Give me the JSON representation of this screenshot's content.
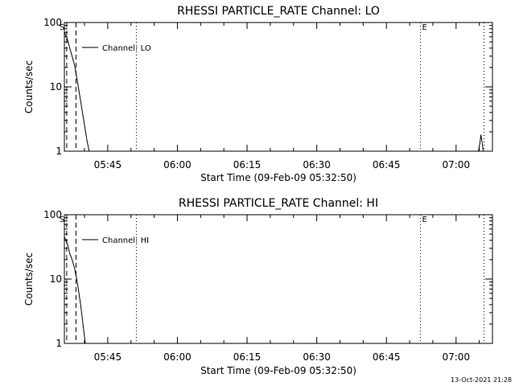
{
  "chart_data": [
    {
      "type": "line",
      "title": "RHESSI PARTICLE_RATE Channel: LO",
      "xlabel": "Start Time (09-Feb-09 05:32:50)",
      "ylabel": "Counts/sec",
      "yscale": "log",
      "ylim": [
        1,
        100
      ],
      "xlim": [
        "05:35:40",
        "07:07:50"
      ],
      "x_ticks": [
        "05:45",
        "06:00",
        "06:15",
        "06:30",
        "06:45",
        "07:00"
      ],
      "y_ticks": [
        "1",
        "10",
        "100"
      ],
      "legend": "Channel: LO",
      "legend_position": "top-left",
      "grid": false,
      "markers": [
        {
          "label": "S",
          "time": "05:36:10",
          "style": "dashed"
        },
        {
          "label": "",
          "time": "05:38:10",
          "style": "dashed"
        },
        {
          "label": "",
          "time": "05:51:10",
          "style": "dotted"
        },
        {
          "label": "E",
          "time": "06:52:20",
          "style": "dotted"
        },
        {
          "label": "",
          "time": "07:06:00",
          "style": "dotted"
        }
      ],
      "series": [
        {
          "name": "Channel: LO",
          "points": [
            [
              "05:35:40",
              70
            ],
            [
              "05:36:20",
              55
            ],
            [
              "05:36:50",
              40
            ],
            [
              "05:37:20",
              30
            ],
            [
              "05:37:50",
              22
            ],
            [
              "05:38:20",
              14
            ],
            [
              "05:38:40",
              10
            ],
            [
              "05:39:10",
              6
            ],
            [
              "05:39:50",
              3
            ],
            [
              "05:40:30",
              1.5
            ],
            [
              "05:41:00",
              1
            ]
          ]
        },
        {
          "name": "",
          "points": [
            [
              "07:04:50",
              1
            ],
            [
              "07:05:10",
              1.4
            ],
            [
              "07:05:20",
              1.8
            ],
            [
              "07:05:35",
              1.4
            ],
            [
              "07:05:50",
              1
            ]
          ]
        }
      ]
    },
    {
      "type": "line",
      "title": "RHESSI PARTICLE_RATE Channel: HI",
      "xlabel": "Start Time (09-Feb-09 05:32:50)",
      "ylabel": "Counts/sec",
      "yscale": "log",
      "ylim": [
        1,
        100
      ],
      "xlim": [
        "05:35:40",
        "07:07:50"
      ],
      "x_ticks": [
        "05:45",
        "06:00",
        "06:15",
        "06:30",
        "06:45",
        "07:00"
      ],
      "y_ticks": [
        "1",
        "10",
        "100"
      ],
      "legend": "Channel: HI",
      "legend_position": "top-left",
      "grid": false,
      "markers": [
        {
          "label": "S",
          "time": "05:36:10",
          "style": "dashed"
        },
        {
          "label": "",
          "time": "05:38:10",
          "style": "dashed"
        },
        {
          "label": "",
          "time": "05:51:10",
          "style": "dotted"
        },
        {
          "label": "E",
          "time": "06:52:20",
          "style": "dotted"
        },
        {
          "label": "",
          "time": "07:06:00",
          "style": "dotted"
        }
      ],
      "series": [
        {
          "name": "Channel: HI",
          "points": [
            [
              "05:35:40",
              45
            ],
            [
              "05:36:20",
              35
            ],
            [
              "05:36:50",
              25
            ],
            [
              "05:37:20",
              20
            ],
            [
              "05:37:50",
              15
            ],
            [
              "05:38:20",
              10
            ],
            [
              "05:38:40",
              7
            ],
            [
              "05:39:10",
              4
            ],
            [
              "05:39:40",
              2
            ],
            [
              "05:40:10",
              1
            ]
          ]
        }
      ]
    }
  ],
  "footer": {
    "timestamp": "13-Oct-2021 21:28"
  }
}
